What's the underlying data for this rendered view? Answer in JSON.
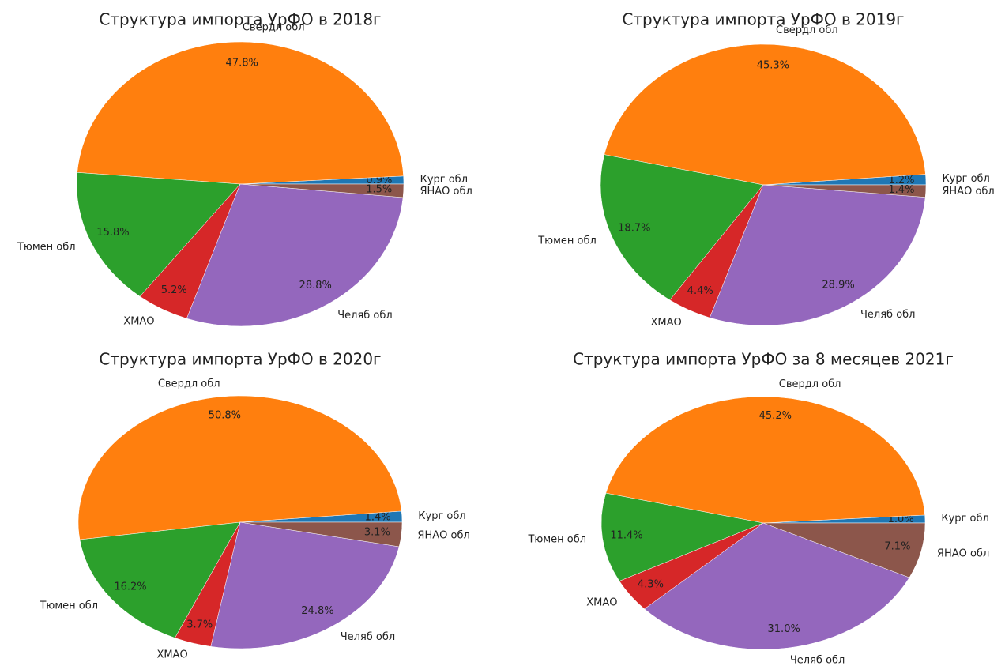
{
  "chart_data": [
    {
      "type": "pie",
      "title": "Структура импорта УрФО в 2018г",
      "categories": [
        "Кург обл",
        "Свердл обл",
        "Тюмен обл",
        "ХМАО",
        "Челяб обл",
        "ЯНАО обл"
      ],
      "values": [
        0.9,
        47.8,
        15.8,
        5.2,
        28.8,
        1.5
      ],
      "value_labels": [
        "0.9%",
        "47.8%",
        "15.8%",
        "5.2%",
        "28.8%",
        "1.5%"
      ],
      "colors": [
        "#1f77b4",
        "#ff7f0e",
        "#2ca02c",
        "#d62728",
        "#9467bd",
        "#8c564b"
      ]
    },
    {
      "type": "pie",
      "title": "Структура импорта УрФО в 2019г",
      "categories": [
        "Кург обл",
        "Свердл обл",
        "Тюмен обл",
        "ХМАО",
        "Челяб обл",
        "ЯНАО обл"
      ],
      "values": [
        1.2,
        45.3,
        18.7,
        4.4,
        28.9,
        1.4
      ],
      "value_labels": [
        "1.2%",
        "45.3%",
        "18.7%",
        "4.4%",
        "28.9%",
        "1.4%"
      ],
      "colors": [
        "#1f77b4",
        "#ff7f0e",
        "#2ca02c",
        "#d62728",
        "#9467bd",
        "#8c564b"
      ]
    },
    {
      "type": "pie",
      "title": "Структура импорта УрФО в 2020г",
      "categories": [
        "Кург обл",
        "Свердл обл",
        "Тюмен обл",
        "ХМАО",
        "Челяб обл",
        "ЯНАО обл"
      ],
      "values": [
        1.4,
        50.8,
        16.2,
        3.7,
        24.8,
        3.1
      ],
      "value_labels": [
        "1.4%",
        "50.8%",
        "16.2%",
        "3.7%",
        "24.8%",
        "3.1%"
      ],
      "colors": [
        "#1f77b4",
        "#ff7f0e",
        "#2ca02c",
        "#d62728",
        "#9467bd",
        "#8c564b"
      ]
    },
    {
      "type": "pie",
      "title": "Структура импорта УрФО за 8 месяцев 2021г",
      "categories": [
        "Кург обл",
        "Свердл обл",
        "Тюмен обл",
        "ХМАО",
        "Челяб обл",
        "ЯНАО обл"
      ],
      "values": [
        1.0,
        45.2,
        11.4,
        4.3,
        31.0,
        7.1
      ],
      "value_labels": [
        "1.0%",
        "45.2%",
        "11.4%",
        "4.3%",
        "31.0%",
        "7.1%"
      ],
      "colors": [
        "#1f77b4",
        "#ff7f0e",
        "#2ca02c",
        "#d62728",
        "#9467bd",
        "#8c564b"
      ]
    }
  ]
}
